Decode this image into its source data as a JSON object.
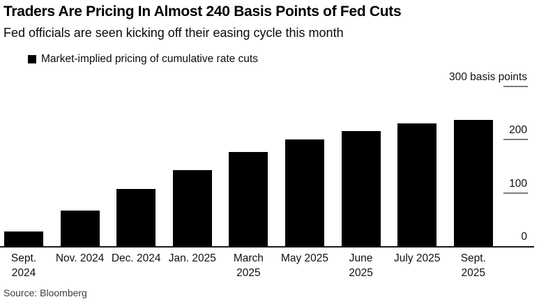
{
  "header": {
    "title": "Traders Are Pricing In Almost 240 Basis Points of Fed Cuts",
    "subtitle": "Fed officials are seen kicking off their easing cycle this month"
  },
  "legend": {
    "marker_color": "#000000",
    "label": "Market-implied pricing of cumulative rate cuts"
  },
  "source": {
    "label": "Source: Bloomberg"
  },
  "chart_data": {
    "type": "bar",
    "title": "Traders Are Pricing In Almost 240 Basis Points of Fed Cuts",
    "subtitle": "Fed officials are seen kicking off their easing cycle this month",
    "legend_entries": [
      "Market-implied pricing of cumulative rate cuts"
    ],
    "legend_position": "top-left",
    "categories": [
      "Sept. 2024",
      "Nov. 2024",
      "Dec. 2024",
      "Jan. 2025",
      "March 2025",
      "May 2025",
      "June 2025",
      "July 2025",
      "Sept. 2025"
    ],
    "category_display_lines": [
      [
        "Sept.",
        "2024"
      ],
      [
        "Nov. 2024"
      ],
      [
        "Dec. 2024"
      ],
      [
        "Jan. 2025"
      ],
      [
        "March",
        "2025"
      ],
      [
        "May 2025"
      ],
      [
        "June",
        "2025"
      ],
      [
        "July 2025"
      ],
      [
        "Sept.",
        "2025"
      ]
    ],
    "values": [
      27,
      67,
      108,
      143,
      177,
      201,
      216,
      230,
      237
    ],
    "unit": "basis points",
    "xlabel": "",
    "ylabel": "",
    "ylim": [
      0,
      300
    ],
    "yticks": [
      300,
      200,
      100,
      0
    ],
    "ytick_labels": [
      "300 basis points",
      "200",
      "100",
      "0"
    ],
    "axis_side": "right",
    "grid": false,
    "bar_color": "#000000",
    "background_color": "#ffffff"
  }
}
